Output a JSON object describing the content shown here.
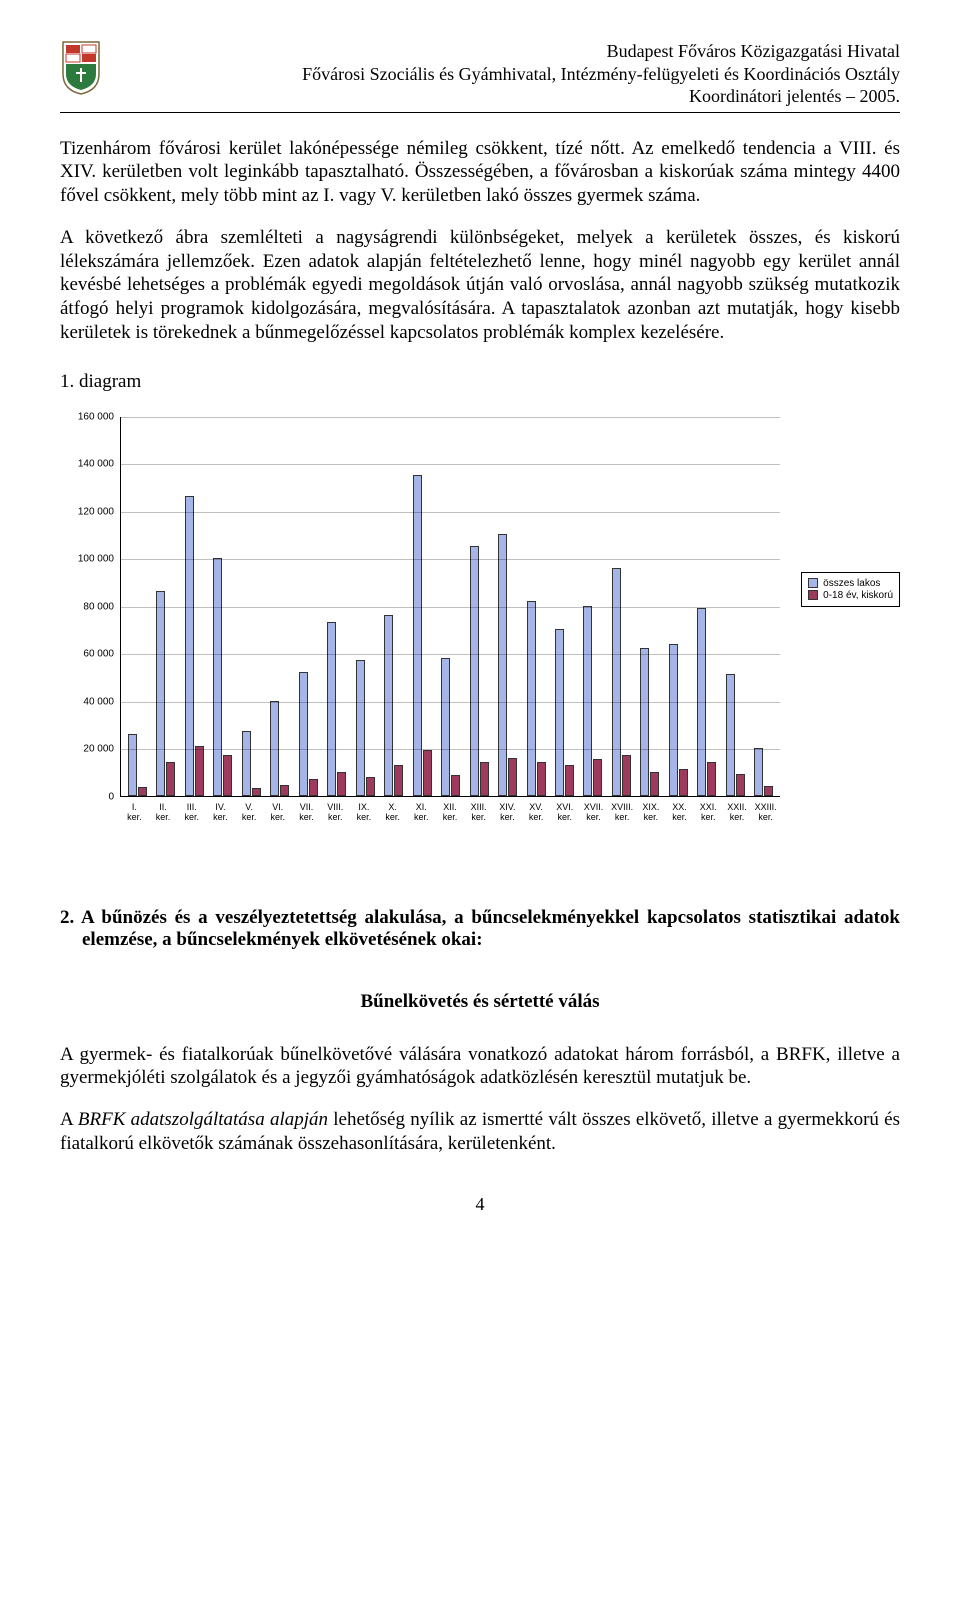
{
  "header": {
    "line1": "Budapest Főváros Közigazgatási Hivatal",
    "line2": "Fővárosi Szociális és Gyámhivatal, Intézmény-felügyeleti és Koordinációs Osztály",
    "line3": "Koordinátori jelentés – 2005."
  },
  "paragraphs": {
    "p1": "Tizenhárom fővárosi kerület lakónépessége némileg csökkent, tízé nőtt. Az emelkedő tendencia a VIII. és XIV. kerületben volt leginkább tapasztalható. Összességében, a fővárosban a kiskorúak száma mintegy 4400 fővel csökkent, mely több mint az I. vagy V. kerületben lakó összes gyermek száma.",
    "p2": "A következő ábra szemlélteti a nagyságrendi különbségeket, melyek a kerületek összes, és kiskorú lélekszámára jellemzőek. Ezen adatok alapján feltételezhető lenne, hogy minél nagyobb egy kerület annál kevésbé lehetséges a problémák egyedi megoldások útján való orvoslása, annál nagyobb szükség mutatkozik átfogó helyi programok kidolgozására, megvalósítására. A tapasztalatok azonban azt mutatják, hogy kisebb kerületek is törekednek a bűnmegelőzéssel kapcsolatos problémák komplex kezelésére."
  },
  "diagram_label": "1. diagram",
  "chart": {
    "type": "bar",
    "ylim": [
      0,
      160000
    ],
    "ytick_step": 20000,
    "ytick_labels": [
      "0",
      "20 000",
      "40 000",
      "60 000",
      "80 000",
      "100 000",
      "120 000",
      "140 000",
      "160 000"
    ],
    "series": [
      {
        "name": "összes lakos",
        "color": "#a5b5e8"
      },
      {
        "name": "0-18 év, kiskorú",
        "color": "#9d3a5e"
      }
    ],
    "categories": [
      "I. ker.",
      "II. ker.",
      "III. ker.",
      "IV. ker.",
      "V. ker.",
      "VI. ker.",
      "VII. ker.",
      "VIII. ker.",
      "IX. ker.",
      "X. ker.",
      "XI. ker.",
      "XII. ker.",
      "XIII. ker.",
      "XIV. ker.",
      "XV. ker.",
      "XVI. ker.",
      "XVII. ker.",
      "XVIII. ker.",
      "XIX. ker.",
      "XX. ker.",
      "XXI. ker.",
      "XXII. ker.",
      "XXIII. ker."
    ],
    "values_series1": [
      26000,
      86000,
      126000,
      100000,
      27000,
      40000,
      52000,
      73000,
      57000,
      76000,
      135000,
      58000,
      105000,
      110000,
      82000,
      70000,
      80000,
      96000,
      62000,
      64000,
      79000,
      51000,
      20000
    ],
    "values_series2": [
      3500,
      14000,
      21000,
      17000,
      3000,
      4500,
      7000,
      10000,
      8000,
      13000,
      19000,
      8500,
      14000,
      16000,
      14000,
      13000,
      15500,
      17000,
      10000,
      11000,
      14000,
      9000,
      4000
    ],
    "grid_color": "#808080",
    "background_color": "#ffffff",
    "label_fontsize": 10
  },
  "section2": {
    "heading": "2.  A bűnözés és a veszélyeztetettség alakulása, a bűncselekményekkel kapcsolatos statisztikai adatok elemzése, a bűncselekmények elkövetésének okai:",
    "subheading": "Bűnelkövetés és sértetté válás",
    "p1": "A gyermek- és fiatalkorúak bűnelkövetővé válására vonatkozó adatokat három forrásból, a BRFK, illetve a gyermekjóléti szolgálatok és a jegyzői gyámhatóságok adatközlésén keresztül mutatjuk be.",
    "p2_prefix": "A ",
    "p2_italic": "BRFK adatszolgáltatása alapján",
    "p2_rest": " lehetőség nyílik az ismertté vált összes elkövető, illetve a gyermekkorú és fiatalkorú elkövetők számának összehasonlítására, kerületenként."
  },
  "page_number": "4"
}
